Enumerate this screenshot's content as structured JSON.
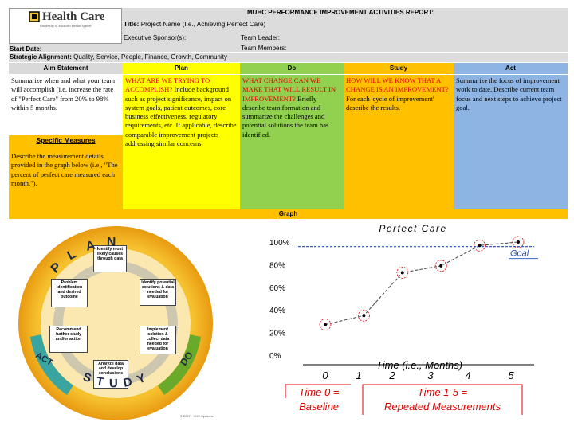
{
  "header": {
    "logo_text": "Health Care",
    "logo_sub": "University of Missouri Health System",
    "report_title": "MUHC PERFORMANCE IMPROVEMENT ACTIVITIES REPORT:",
    "title_label": "Title:",
    "title_value": "Project Name (I.e., Achieving Perfect Care)",
    "exec_sponsor": "Executive Sponsor(s):",
    "team_leader": "Team Leader:",
    "start_date": "Start Date:",
    "team_members": "Team Members:",
    "strategic_label": "Strategic Alignment:",
    "strategic_value": "Quality, Service, People, Finance, Growth, Community"
  },
  "columns": [
    {
      "label": "Aim Statement",
      "color": "#d9d9d9"
    },
    {
      "label": "Plan",
      "color": "#ffff00"
    },
    {
      "label": "Do",
      "color": "#92d050"
    },
    {
      "label": "Study",
      "color": "#ffc000"
    },
    {
      "label": "Act",
      "color": "#8db4e2"
    }
  ],
  "cells": {
    "aim": "Summarize when and what your team will accomplish (i.e. increase the rate of \"Perfect Care\" from 20% to 98% within 5 months.",
    "specific_measures": "Specific Measures",
    "measures_text": "Describe the measurement details provided in the graph below (i.e., \"The percent of perfect care measured each month.\").",
    "plan_caps": "WHAT ARE WE TRYING TO ACCOMPLISH?",
    "plan_text": "Include background such as project significance, impact on system goals, patient outcomes, core business effectiveness, regulatory requirements, etc. If applicable, describe comparable improvement projects addressing similar concerns.",
    "do_caps": "WHAT CHANGE CAN WE MAKE THAT WILL RESULT IN IMPROVEMENT?",
    "do_text": "Briefly describe team formation and summarize the challenges and potential solutions the team has identified.",
    "study_caps": "HOW WILL WE KNOW THAT A CHANGE IS AN IMPROVEMENT?",
    "study_text": "For each 'cycle of improvement' describe the results.",
    "act_text": "Summarize the focus of improvement work to date. Describe current team focus and next steps to achieve project goal."
  },
  "graph_label": "Graph",
  "pdsa": {
    "plan": "PLAN",
    "do": "DO",
    "study": "STUDY",
    "act": "ACT",
    "steps": [
      "Identify most likely causes through data",
      "Identify potential solutions & data needed for evaluation",
      "Implement solution & collect data needed for evaluation",
      "Analyze data and develop conclusions",
      "Recommend further study and/or action",
      "Problem Identification and desired outcome"
    ],
    "copyright": "© 2007 · HHS Systems"
  },
  "chart_data": {
    "type": "line",
    "title": "Perfect Care",
    "xlabel": "Time (i.e., Months)",
    "x": [
      "0",
      "1",
      "2",
      "3",
      "4",
      "5"
    ],
    "x_tick_labels": [
      "0",
      "1",
      "2",
      "3",
      "4",
      "5"
    ],
    "y_tick_labels": [
      "0%",
      "20%",
      "40%",
      "60%",
      "80%",
      "100%"
    ],
    "ylim": [
      0,
      100
    ],
    "values": [
      27,
      35,
      73,
      79,
      97,
      100
    ],
    "goal_value": 96,
    "goal_label": "Goal",
    "annotation_baseline": "Time 0 = Baseline",
    "annotation_repeated": "Time 1-5 = Repeated Measurements",
    "colors": {
      "line": "#444444",
      "marker": "#e00000",
      "goal": "#1f4fbf",
      "annotation": "#e00000"
    }
  }
}
